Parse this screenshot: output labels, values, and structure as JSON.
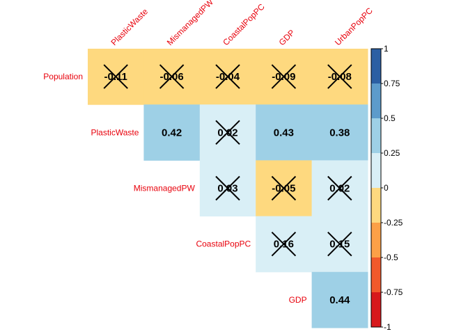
{
  "chart_data": {
    "type": "heatmap",
    "layout": "upper-triangle",
    "col_labels": [
      "PlasticWaste",
      "MismanagedPW",
      "CoastalPopPC",
      "GDP",
      "UrbanPopPC"
    ],
    "row_labels": [
      "Population",
      "PlasticWaste",
      "MismanagedPW",
      "CoastalPopPC",
      "GDP"
    ],
    "cells": [
      {
        "row": 0,
        "col": 0,
        "value": -0.11,
        "label": "-0.11",
        "insignificant": true
      },
      {
        "row": 0,
        "col": 1,
        "value": -0.06,
        "label": "-0.06",
        "insignificant": true
      },
      {
        "row": 0,
        "col": 2,
        "value": -0.04,
        "label": "-0.04",
        "insignificant": true
      },
      {
        "row": 0,
        "col": 3,
        "value": -0.09,
        "label": "-0.09",
        "insignificant": true
      },
      {
        "row": 0,
        "col": 4,
        "value": -0.08,
        "label": "-0.08",
        "insignificant": true
      },
      {
        "row": 1,
        "col": 1,
        "value": 0.42,
        "label": "0.42",
        "insignificant": false
      },
      {
        "row": 1,
        "col": 2,
        "value": 0.02,
        "label": "0.02",
        "insignificant": true
      },
      {
        "row": 1,
        "col": 3,
        "value": 0.43,
        "label": "0.43",
        "insignificant": false
      },
      {
        "row": 1,
        "col": 4,
        "value": 0.38,
        "label": "0.38",
        "insignificant": false
      },
      {
        "row": 2,
        "col": 2,
        "value": 0.03,
        "label": "0.03",
        "insignificant": true
      },
      {
        "row": 2,
        "col": 3,
        "value": -0.05,
        "label": "-0.05",
        "insignificant": true
      },
      {
        "row": 2,
        "col": 4,
        "value": 0.02,
        "label": "0.02",
        "insignificant": true
      },
      {
        "row": 3,
        "col": 3,
        "value": 0.16,
        "label": "0.16",
        "insignificant": true
      },
      {
        "row": 3,
        "col": 4,
        "value": 0.15,
        "label": "0.15",
        "insignificant": true
      },
      {
        "row": 4,
        "col": 4,
        "value": 0.44,
        "label": "0.44",
        "insignificant": false
      }
    ],
    "colorbar": {
      "range": [
        -1,
        1
      ],
      "ticks": [
        "1",
        "0.75",
        "0.5",
        "0.25",
        "0",
        "-0.25",
        "-0.5",
        "-0.75",
        "-1"
      ],
      "bins": [
        {
          "from": 0.75,
          "to": 1,
          "color": "#2c5fa3"
        },
        {
          "from": 0.5,
          "to": 0.75,
          "color": "#5d9bcb"
        },
        {
          "from": 0.25,
          "to": 0.5,
          "color": "#9ed0e6"
        },
        {
          "from": 0,
          "to": 0.25,
          "color": "#d9eff6"
        },
        {
          "from": -0.25,
          "to": 0,
          "color": "#fed97f"
        },
        {
          "from": -0.5,
          "to": -0.25,
          "color": "#fca047"
        },
        {
          "from": -0.75,
          "to": -0.5,
          "color": "#f1592b"
        },
        {
          "from": -1,
          "to": -0.75,
          "color": "#d7191c"
        }
      ]
    },
    "label_color": "#e8000b"
  }
}
